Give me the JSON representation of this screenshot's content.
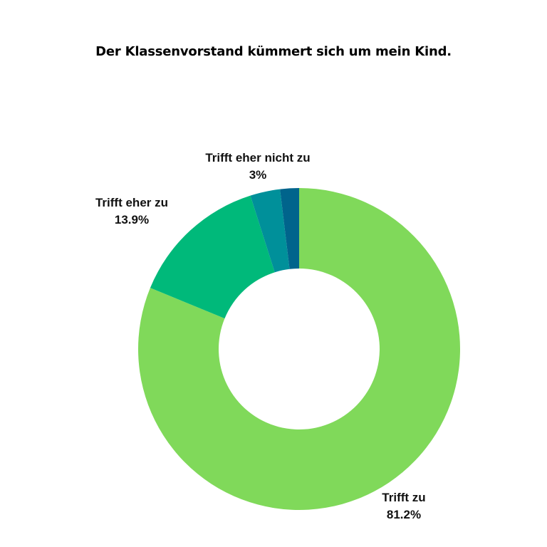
{
  "chart_data": {
    "type": "pie",
    "title": "Der Klassenvorstand kümmert sich um mein Kind.",
    "donut": true,
    "slices": [
      {
        "label": "Trifft zu",
        "value": 81.2,
        "value_label": "81.2%",
        "color": "#80d95a"
      },
      {
        "label": "Trifft eher zu",
        "value": 13.9,
        "value_label": "13.9%",
        "color": "#00b97a"
      },
      {
        "label": "Trifft eher nicht zu",
        "value": 3,
        "value_label": "3%",
        "color": "#00909a"
      },
      {
        "label": "",
        "value": 1.9,
        "value_label": "",
        "color": "#00648c"
      }
    ]
  }
}
